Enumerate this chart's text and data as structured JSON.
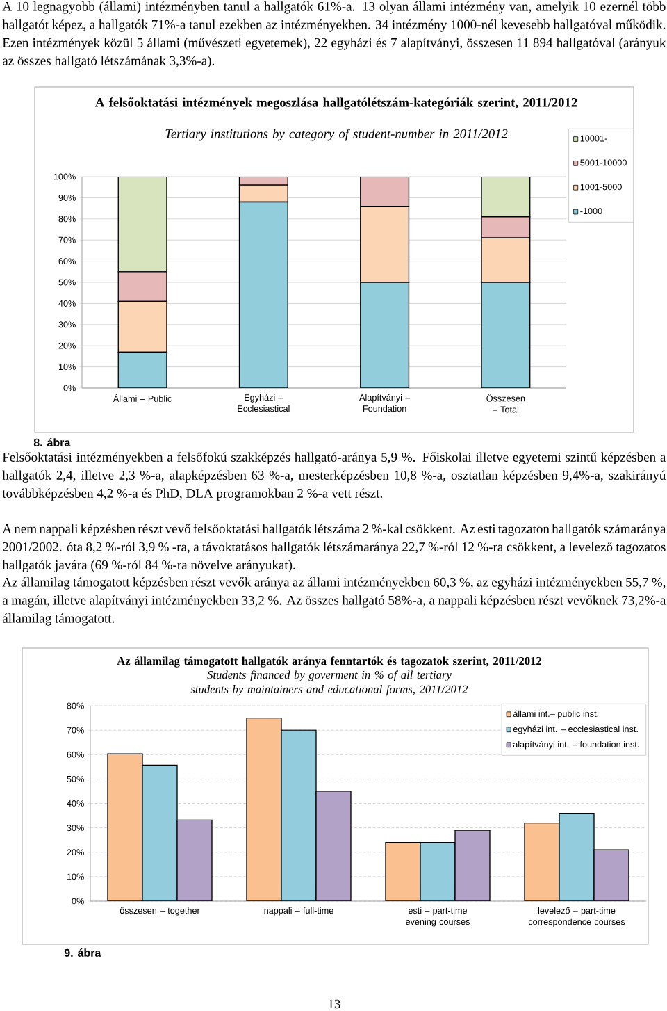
{
  "chart_data": [
    {
      "type": "bar",
      "title": "A felsőoktatási intézmények megoszlása hallgatólétszám-kategóriák szerint, 2011/2012",
      "subtitle": "Tertiary institutions by category of student-number in 2011/2012",
      "categories": [
        "Állami – Public",
        "Egyházi – Ecclesiastical",
        "Alapítványi – Foundation",
        "Összesen – Total"
      ],
      "stacked": true,
      "series": [
        {
          "name": "-1000",
          "color": "#92cddc",
          "values": [
            17,
            88,
            50,
            50
          ]
        },
        {
          "name": "1001-5000",
          "color": "#fcd5b5",
          "values": [
            24,
            8,
            36,
            21
          ]
        },
        {
          "name": "5001-10000",
          "color": "#e6b9b8",
          "values": [
            14,
            4,
            14,
            10
          ]
        },
        {
          "name": "10001-",
          "color": "#d7e4bd",
          "values": [
            45,
            0,
            0,
            19
          ]
        }
      ],
      "ylim": [
        0,
        100
      ],
      "yticks": [
        {
          "value": 0,
          "label": "0%"
        },
        {
          "value": 10,
          "label": "10%"
        },
        {
          "value": 20,
          "label": "20%"
        },
        {
          "value": 30,
          "label": "30%"
        },
        {
          "value": 40,
          "label": "40%"
        },
        {
          "value": 50,
          "label": "50%"
        },
        {
          "value": 60,
          "label": "60%"
        },
        {
          "value": 70,
          "label": "70%"
        },
        {
          "value": 80,
          "label": "80%"
        },
        {
          "value": 90,
          "label": "90%"
        },
        {
          "value": 100,
          "label": "100%"
        }
      ],
      "grid": "y",
      "legend": "top right",
      "annotations": [
        "A 10 legnagyobb (állami) intézményben tanul a hallgatók 61%-a. 13 olyan állami intézmény van, amelyik 10 ezernél több hallgatót képez, a hallgatók 71%-a tanul ezekben az intézményekben. 34 intézmény 1000-nél kevesebb hallgatóval működik. Ezen intézmények közül 5 állami (művészeti egyetemek), 22 egyházi és 7 alapítványi, összesen 11 894 hallgatóval (arányuk az összes hallgató létszámának 3,3%-a).",
        "8. ábra"
      ]
    },
    {
      "type": "bar",
      "title": "Az államilag támogatott hallgatók aránya fenntartók és tagozatok szerint,  2011/2012",
      "subtitle": "Students financed by goverment in % of all tertiary students by maintainers and educational forms, 2011/2012",
      "categories": [
        "összesen – together",
        "nappali – full-time",
        "esti – part-time evening courses",
        "levelező – part-time correspondence courses"
      ],
      "series": [
        {
          "name": "állami int.– public inst.",
          "color": "#fac090",
          "values": [
            60.3,
            75,
            24,
            32
          ]
        },
        {
          "name": "egyházi int. – ecclesiastical inst.",
          "color": "#93cddd",
          "values": [
            55.7,
            70,
            24,
            36
          ]
        },
        {
          "name": "alapítványi int. – foundation inst.",
          "color": "#b3a2c7",
          "values": [
            33.2,
            45,
            29,
            21
          ]
        }
      ],
      "ylim": [
        0,
        80
      ],
      "yticks": [
        {
          "value": 0,
          "label": "0%"
        },
        {
          "value": 10,
          "label": "10%"
        },
        {
          "value": 20,
          "label": "20%"
        },
        {
          "value": 30,
          "label": "30%"
        },
        {
          "value": 40,
          "label": "40%"
        },
        {
          "value": 50,
          "label": "50%"
        },
        {
          "value": 60,
          "label": "60%"
        },
        {
          "value": 70,
          "label": "70%"
        },
        {
          "value": 80,
          "label": "80%"
        }
      ],
      "grid": "y",
      "legend": "top right",
      "annotations": [
        "Felsőoktatási intézményekben a felsőfokú szakképzés hallgató-aránya 5,9 %. Főiskolai illetve egyetemi szintű képzésben a hallgatók 2,4, illetve 2,3 %-a, alapképzésben 63 %-a, mesterképzésben 10,8 %-a, osztatlan képzésben 9,4%-a, szakirányú továbbképzésben 4,2 %-a és PhD, DLA programokban 2 %-a vett részt.",
        "A nem nappali képzésben részt vevő felsőoktatási hallgatók létszáma 2 %-kal csökkent. Az esti tagozaton hallgatók számaránya 2001/2002. óta 8,2 %-ról 3,9 % -ra, a távoktatásos hallgatók létszámaránya 22,7 %-ról 12 %-ra csökkent, a levelező tagozatos hallgatók javára (69 %-ról 84 %-ra növelve arányukat).",
        "Az államilag támogatott képzésben részt vevők aránya az állami intézményekben 60,3 %, az egyházi intézményekben 55,7 %, a magán, illetve alapítványi intézményekben 33,2 %. Az összes hallgató 58%-a, a nappali képzésben részt vevőknek 73,2%-a államilag támogatott.",
        "9. ábra",
        "13"
      ]
    }
  ]
}
